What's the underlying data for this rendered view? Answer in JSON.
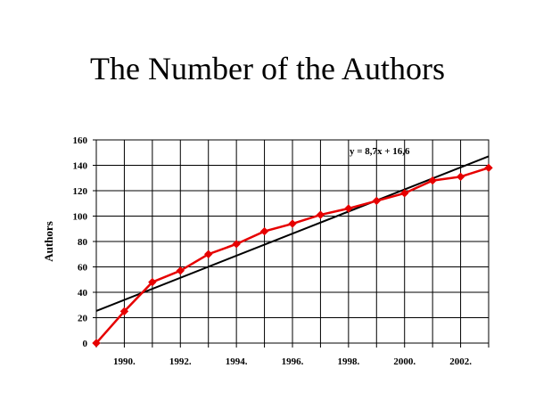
{
  "chart_data": {
    "type": "line",
    "title": "The Number of the Authors",
    "xlabel": "",
    "ylabel": "Authors",
    "x_tick_labels": [
      "1990.",
      "1992.",
      "1994.",
      "1996.",
      "1998.",
      "2000.",
      "2002."
    ],
    "y_ticks": [
      0,
      20,
      40,
      60,
      80,
      100,
      120,
      140,
      160
    ],
    "ylim": [
      0,
      160
    ],
    "x": [
      1989,
      1990,
      1991,
      1992,
      1993,
      1994,
      1995,
      1996,
      1997,
      1998,
      1999,
      2000,
      2001,
      2002,
      2003
    ],
    "series": [
      {
        "values": [
          0,
          25,
          48,
          57,
          70,
          78,
          88,
          94,
          101,
          106,
          112,
          118,
          128,
          131,
          138
        ],
        "color": "#e60000",
        "marker": "diamond"
      }
    ],
    "trendline": {
      "label": "y = 8,7x + 16,6",
      "slope": 8.7,
      "intercept": 16.6,
      "color": "#000000"
    },
    "grid": true,
    "legend": "none"
  }
}
